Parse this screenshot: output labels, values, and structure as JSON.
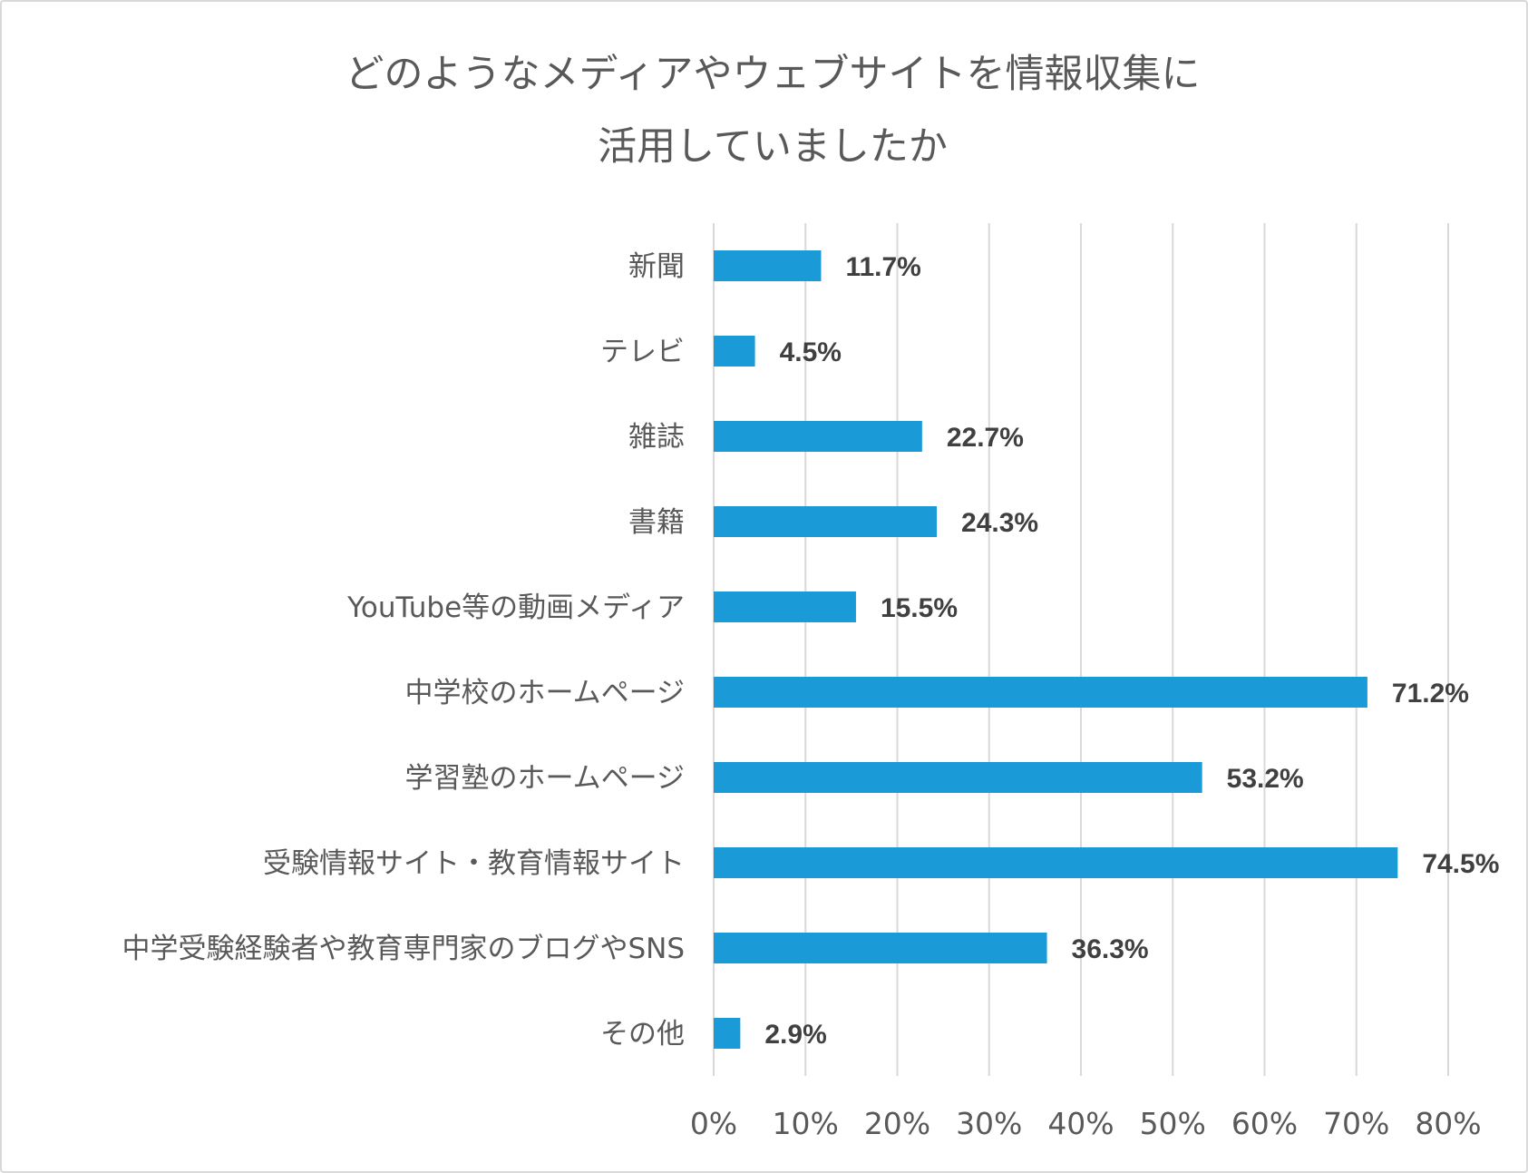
{
  "chart_data": {
    "type": "bar",
    "orientation": "horizontal",
    "title_lines": [
      "どのようなメディアやウェブサイトを情報収集に",
      "活用していましたか"
    ],
    "categories": [
      "新聞",
      "テレビ",
      "雑誌",
      "書籍",
      "YouTube等の動画メディア",
      "中学校のホームページ",
      "学習塾のホームページ",
      "受験情報サイト・教育情報サイト",
      "中学受験経験者や教育専門家のブログやSNS",
      "その他"
    ],
    "values": [
      11.7,
      4.5,
      22.7,
      24.3,
      15.5,
      71.2,
      53.2,
      74.5,
      36.3,
      2.9
    ],
    "value_labels": [
      "11.7%",
      "4.5%",
      "22.7%",
      "24.3%",
      "15.5%",
      "71.2%",
      "53.2%",
      "74.5%",
      "36.3%",
      "2.9%"
    ],
    "xlim": [
      0,
      80
    ],
    "xticks": [
      0,
      10,
      20,
      30,
      40,
      50,
      60,
      70,
      80
    ],
    "xtick_labels": [
      "0%",
      "10%",
      "20%",
      "30%",
      "40%",
      "50%",
      "60%",
      "70%",
      "80%"
    ],
    "xlabel": "",
    "ylabel": "",
    "grid": true,
    "legend": "none",
    "colors": {
      "bar": "#1A9BD7",
      "grid": "#d9d9d9",
      "text": "#595959",
      "data_label": "#404040"
    }
  }
}
